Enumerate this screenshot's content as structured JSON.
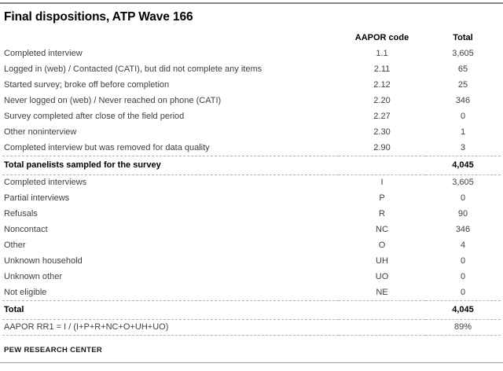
{
  "chart_data": {
    "type": "table",
    "title": "Final dispositions, ATP Wave 166",
    "columns": [
      "",
      "AAPOR code",
      "Total"
    ],
    "rows": [
      {
        "label": "Completed interview",
        "code": "1.1",
        "total": "3,605",
        "style": "regular"
      },
      {
        "label": "Logged in (web) / Contacted (CATI), but did not complete any items",
        "code": "2.11",
        "total": "65",
        "style": "regular"
      },
      {
        "label": "Started survey; broke off before completion",
        "code": "2.12",
        "total": "25",
        "style": "regular"
      },
      {
        "label": "Never logged on (web) / Never reached on phone (CATI)",
        "code": "2.20",
        "total": "346",
        "style": "regular"
      },
      {
        "label": "Survey completed after close of the field period",
        "code": "2.27",
        "total": "0",
        "style": "regular"
      },
      {
        "label": "Other noninterview",
        "code": "2.30",
        "total": "1",
        "style": "regular"
      },
      {
        "label": "Completed interview but was removed for data quality",
        "code": "2.90",
        "total": "3",
        "style": "regular"
      },
      {
        "label": "Total panelists sampled for the survey",
        "code": "",
        "total": "4,045",
        "style": "total"
      },
      {
        "label": "Completed interviews",
        "code": "I",
        "total": "3,605",
        "style": "regular"
      },
      {
        "label": "Partial interviews",
        "code": "P",
        "total": "0",
        "style": "regular"
      },
      {
        "label": "Refusals",
        "code": "R",
        "total": "90",
        "style": "regular"
      },
      {
        "label": "Noncontact",
        "code": "NC",
        "total": "346",
        "style": "regular"
      },
      {
        "label": "Other",
        "code": "O",
        "total": "4",
        "style": "regular"
      },
      {
        "label": "Unknown household",
        "code": "UH",
        "total": "0",
        "style": "regular"
      },
      {
        "label": "Unknown other",
        "code": "UO",
        "total": "0",
        "style": "regular"
      },
      {
        "label": "Not eligible",
        "code": "NE",
        "total": "0",
        "style": "regular"
      },
      {
        "label": "Total",
        "code": "",
        "total": "4,045",
        "style": "total"
      },
      {
        "label": "AAPOR RR1 = I / (I+P+R+NC+O+UH+UO)",
        "code": "",
        "total": "89%",
        "style": "rate"
      }
    ],
    "source": "PEW RESEARCH CENTER"
  },
  "colors": {
    "text": "#3f3f3f",
    "emphasis_text": "#000000",
    "page_rule": "#868686",
    "row_divider": "#b3b3b3",
    "background": "#ffffff"
  }
}
